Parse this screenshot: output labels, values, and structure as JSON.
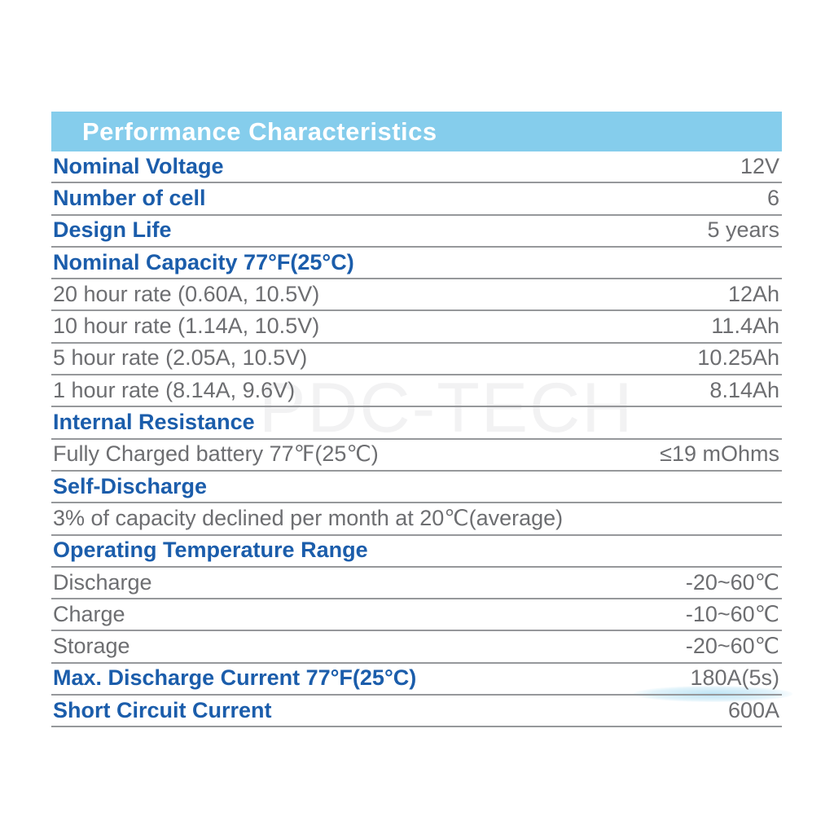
{
  "table": {
    "title": "Performance Characteristics",
    "colors": {
      "header_bg": "#85cdec",
      "header_fg": "#ffffff",
      "label_blue": "#1b5dab",
      "text_gray": "#6d6e71",
      "border_gray": "#96989b"
    },
    "rows": [
      {
        "label": "Nominal Voltage",
        "value": "12V",
        "style": "blue"
      },
      {
        "label": "Number of cell",
        "value": "6",
        "style": "blue"
      },
      {
        "label": "Design Life",
        "value": "5 years",
        "style": "blue"
      },
      {
        "label": "Nominal Capacity 77°F(25°C)",
        "value": "",
        "style": "blue"
      },
      {
        "label": "20 hour rate (0.60A, 10.5V)",
        "value": "12Ah",
        "style": "gray"
      },
      {
        "label": "10 hour rate (1.14A, 10.5V)",
        "value": "11.4Ah",
        "style": "gray"
      },
      {
        "label": "5 hour rate (2.05A, 10.5V)",
        "value": "10.25Ah",
        "style": "gray"
      },
      {
        "label": "1 hour rate (8.14A, 9.6V)",
        "value": "8.14Ah",
        "style": "gray"
      },
      {
        "label": "Internal Resistance",
        "value": "",
        "style": "blue"
      },
      {
        "label": "Fully Charged battery 77℉(25℃)",
        "value": "≤19 mOhms",
        "style": "gray"
      },
      {
        "label": "Self-Discharge",
        "value": "",
        "style": "blue"
      },
      {
        "label": "3% of capacity declined per month at 20℃(average)",
        "value": "",
        "style": "gray"
      },
      {
        "label": "Operating Temperature Range",
        "value": "",
        "style": "blue"
      },
      {
        "label": "Discharge",
        "value": "-20~60℃",
        "style": "gray"
      },
      {
        "label": "Charge",
        "value": "-10~60℃",
        "style": "gray"
      },
      {
        "label": "Storage",
        "value": "-20~60℃",
        "style": "gray"
      },
      {
        "label": "Max. Discharge Current 77°F(25°C)",
        "value": "180A(5s)",
        "style": "blue"
      },
      {
        "label": "Short Circuit Current",
        "value": "600A",
        "style": "blue"
      }
    ]
  },
  "watermark": {
    "text": "PDC-TECH"
  }
}
